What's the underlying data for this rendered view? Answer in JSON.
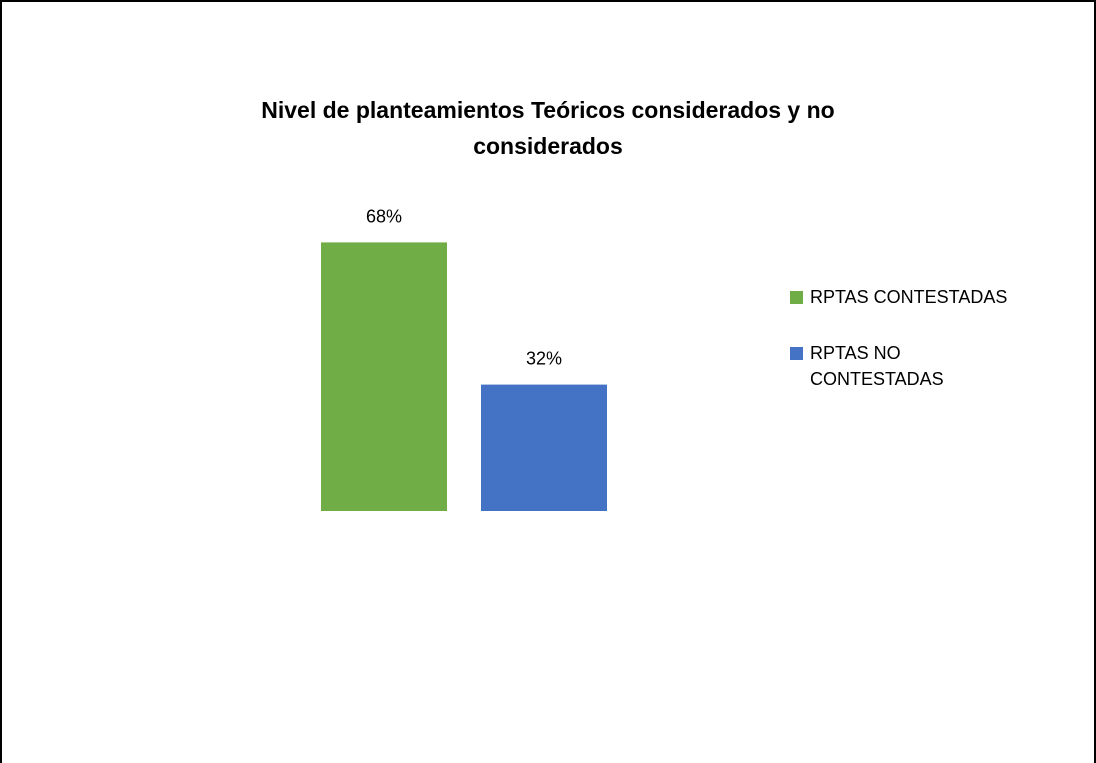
{
  "chart_data": {
    "type": "bar",
    "title": "Nivel de planteamientos Teóricos considerados y no considerados",
    "categories": [
      null
    ],
    "series": [
      {
        "name": "RPTAS CONTESTADAS",
        "color": "#70ad47",
        "values": [
          68
        ],
        "value_labels": [
          "68%"
        ]
      },
      {
        "name": "RPTAS NO CONTESTADAS",
        "color": "#4472c4",
        "values": [
          32
        ],
        "value_labels": [
          "32%"
        ]
      }
    ],
    "legend": "right"
  }
}
